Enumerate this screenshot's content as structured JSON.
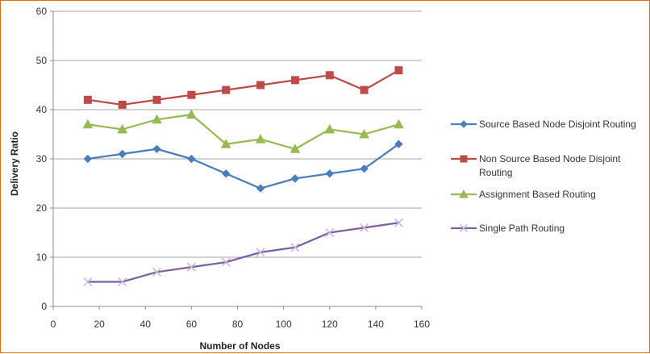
{
  "chart_data": {
    "type": "line",
    "xlabel": "Number of Nodes",
    "ylabel": "Delivery Ratio",
    "xlim": [
      0,
      160
    ],
    "ylim": [
      0,
      60
    ],
    "xticks": [
      "0",
      "20",
      "40",
      "60",
      "80",
      "100",
      "120",
      "140",
      "160"
    ],
    "yticks": [
      "0",
      "10",
      "20",
      "30",
      "40",
      "50",
      "60"
    ],
    "grid": "horizontal",
    "legend_position": "right",
    "x": [
      15,
      30,
      45,
      60,
      75,
      90,
      105,
      120,
      135,
      150
    ],
    "series": [
      {
        "name": "Source Based Node Disjoint Routing",
        "values": [
          30,
          31,
          32,
          30,
          27,
          24,
          26,
          27,
          28,
          33
        ],
        "color": "#4a7ebb",
        "marker": "diamond",
        "legend_lines": [
          "Source Based Node Disjoint Routing"
        ]
      },
      {
        "name": "Non Source Based Node Disjoint Routing",
        "values": [
          42,
          41,
          42,
          43,
          44,
          45,
          46,
          47,
          44,
          48
        ],
        "color": "#be4b48",
        "marker": "square",
        "legend_lines": [
          "Non Source Based Node Disjoint",
          "Routing"
        ]
      },
      {
        "name": "Assignment Based Routing",
        "values": [
          37,
          36,
          38,
          39,
          33,
          34,
          32,
          36,
          35,
          37
        ],
        "color": "#98b954",
        "marker": "triangle",
        "legend_lines": [
          "Assignment Based Routing"
        ]
      },
      {
        "name": "Single Path Routing",
        "values": [
          5,
          5,
          7,
          8,
          9,
          11,
          12,
          15,
          16,
          17
        ],
        "color": "#7d60a0",
        "marker": "x",
        "legend_lines": [
          "Single Path Routing"
        ]
      }
    ]
  }
}
